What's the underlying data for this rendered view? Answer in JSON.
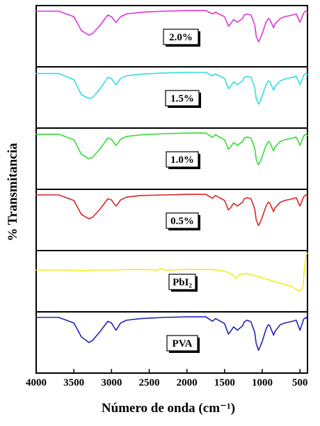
{
  "chart_data": {
    "type": "line",
    "xlabel": "Número de onda (cm⁻¹)",
    "ylabel": "% Transmitancia",
    "xlim": [
      4000,
      400
    ],
    "x_reversed": true,
    "xticks": [
      4000,
      3500,
      3000,
      2500,
      2000,
      1500,
      1000,
      500
    ],
    "stacked_panels": true,
    "grid": false,
    "series": [
      {
        "name": "2.0%",
        "color": "#dd33dd",
        "x": [
          4000,
          3700,
          3500,
          3400,
          3300,
          3250,
          3150,
          3050,
          3000,
          2960,
          2940,
          2920,
          2880,
          2800,
          2600,
          2300,
          2000,
          1750,
          1660,
          1620,
          1500,
          1450,
          1420,
          1380,
          1330,
          1260,
          1240,
          1200,
          1150,
          1100,
          1080,
          1050,
          1030,
          1000,
          950,
          920,
          900,
          850,
          830,
          760,
          700,
          600,
          550,
          500,
          450,
          420,
          400
        ],
        "y": [
          95,
          95,
          85,
          60,
          52,
          55,
          70,
          88,
          85,
          78,
          75,
          78,
          85,
          90,
          93,
          95,
          96,
          96,
          90,
          93,
          85,
          68,
          72,
          80,
          75,
          82,
          88,
          90,
          88,
          70,
          50,
          40,
          45,
          55,
          75,
          82,
          80,
          65,
          72,
          82,
          85,
          88,
          90,
          75,
          92,
          95,
          93
        ]
      },
      {
        "name": "1.5%",
        "color": "#33dddd",
        "x": [
          4000,
          3700,
          3500,
          3400,
          3300,
          3250,
          3150,
          3050,
          3000,
          2960,
          2940,
          2920,
          2880,
          2800,
          2600,
          2300,
          2000,
          1750,
          1660,
          1620,
          1500,
          1450,
          1420,
          1380,
          1330,
          1260,
          1240,
          1200,
          1150,
          1100,
          1080,
          1050,
          1030,
          1000,
          950,
          920,
          900,
          850,
          830,
          760,
          700,
          600,
          550,
          500,
          450,
          420,
          400
        ],
        "y": [
          93,
          93,
          82,
          55,
          48,
          50,
          66,
          86,
          84,
          76,
          73,
          76,
          84,
          89,
          92,
          94,
          95,
          95,
          89,
          92,
          84,
          66,
          70,
          78,
          73,
          80,
          86,
          88,
          86,
          68,
          48,
          38,
          43,
          53,
          73,
          80,
          78,
          63,
          70,
          80,
          83,
          86,
          88,
          73,
          90,
          93,
          91
        ]
      },
      {
        "name": "1.0%",
        "color": "#33dd33",
        "x": [
          4000,
          3700,
          3500,
          3400,
          3300,
          3250,
          3150,
          3050,
          3000,
          2960,
          2940,
          2920,
          2880,
          2800,
          2600,
          2300,
          2000,
          1750,
          1660,
          1620,
          1500,
          1450,
          1420,
          1380,
          1330,
          1260,
          1240,
          1200,
          1150,
          1100,
          1080,
          1050,
          1030,
          1000,
          950,
          920,
          900,
          850,
          830,
          760,
          700,
          600,
          550,
          500,
          450,
          420,
          400
        ],
        "y": [
          94,
          94,
          84,
          58,
          50,
          53,
          68,
          87,
          85,
          77,
          74,
          77,
          85,
          90,
          93,
          95,
          96,
          96,
          88,
          93,
          84,
          67,
          71,
          79,
          74,
          81,
          87,
          89,
          87,
          69,
          49,
          39,
          44,
          54,
          74,
          81,
          79,
          64,
          71,
          81,
          84,
          87,
          89,
          74,
          91,
          94,
          92
        ]
      },
      {
        "name": "0.5%",
        "color": "#dd2222",
        "x": [
          4000,
          3700,
          3500,
          3400,
          3300,
          3250,
          3150,
          3050,
          3000,
          2960,
          2940,
          2920,
          2880,
          2800,
          2600,
          2300,
          2000,
          1750,
          1660,
          1620,
          1500,
          1450,
          1420,
          1380,
          1330,
          1260,
          1240,
          1200,
          1150,
          1100,
          1080,
          1050,
          1030,
          1000,
          950,
          920,
          900,
          850,
          830,
          760,
          700,
          600,
          550,
          500,
          450,
          420,
          400
        ],
        "y": [
          95,
          95,
          85,
          60,
          52,
          55,
          70,
          88,
          86,
          78,
          75,
          78,
          86,
          91,
          94,
          95,
          96,
          96,
          89,
          94,
          85,
          68,
          72,
          80,
          75,
          82,
          88,
          90,
          88,
          70,
          50,
          40,
          45,
          55,
          75,
          82,
          80,
          65,
          72,
          82,
          85,
          88,
          90,
          75,
          92,
          95,
          93
        ]
      },
      {
        "name": "PbI₂",
        "color": "#eeee22",
        "x": [
          4000,
          3800,
          3600,
          3400,
          3200,
          3000,
          2800,
          2600,
          2400,
          2350,
          2300,
          2000,
          1700,
          1600,
          1500,
          1400,
          1350,
          1300,
          1200,
          1100,
          1000,
          900,
          800,
          700,
          600,
          550,
          500,
          460,
          440,
          420,
          400
        ],
        "y": [
          70,
          70,
          70,
          69,
          70,
          70,
          71,
          71,
          70,
          73,
          70,
          71,
          71,
          70,
          68,
          62,
          55,
          62,
          64,
          60,
          56,
          52,
          48,
          44,
          40,
          35,
          32,
          40,
          75,
          98,
          100
        ]
      },
      {
        "name": "PVA",
        "color": "#2222bb",
        "x": [
          4000,
          3700,
          3500,
          3400,
          3300,
          3250,
          3150,
          3050,
          3000,
          2960,
          2940,
          2920,
          2880,
          2800,
          2600,
          2300,
          2000,
          1750,
          1660,
          1620,
          1500,
          1450,
          1420,
          1380,
          1330,
          1260,
          1240,
          1200,
          1150,
          1100,
          1080,
          1050,
          1030,
          1000,
          950,
          920,
          900,
          850,
          830,
          760,
          700,
          600,
          550,
          500,
          450,
          420,
          400
        ],
        "y": [
          95,
          95,
          85,
          60,
          50,
          54,
          70,
          88,
          85,
          76,
          72,
          76,
          85,
          90,
          93,
          95,
          96,
          96,
          88,
          93,
          84,
          65,
          70,
          78,
          72,
          80,
          87,
          90,
          87,
          68,
          48,
          36,
          42,
          52,
          74,
          82,
          80,
          63,
          70,
          82,
          85,
          88,
          90,
          72,
          92,
          95,
          92
        ]
      }
    ]
  }
}
